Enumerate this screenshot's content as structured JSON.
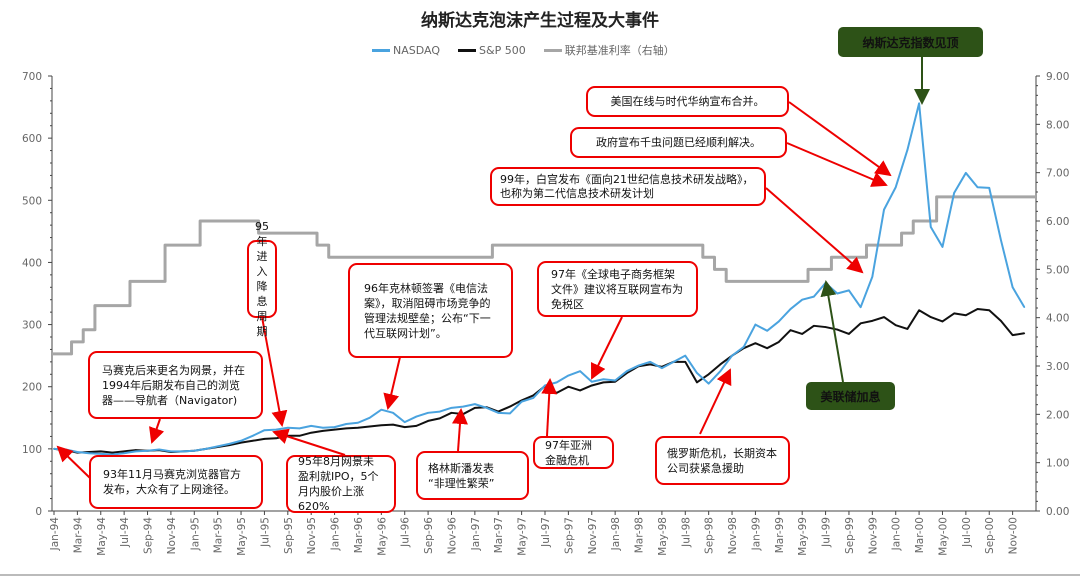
{
  "chart_data": {
    "type": "line",
    "title": "纳斯达克泡沫产生过程及大事件",
    "legend": {
      "placement": "top",
      "entries": [
        "NASDAQ",
        "S&P 500",
        "联邦基准利率（右轴）"
      ]
    },
    "x_ticks": [
      "Jan-94",
      "Mar-94",
      "May-94",
      "Jul-94",
      "Sep-94",
      "Nov-94",
      "Jan-95",
      "Mar-95",
      "May-95",
      "Jul-95",
      "Sep-95",
      "Nov-95",
      "Jan-96",
      "Mar-96",
      "May-96",
      "Jul-96",
      "Sep-96",
      "Nov-96",
      "Jan-97",
      "Mar-97",
      "May-97",
      "Jul-97",
      "Sep-97",
      "Nov-97",
      "Jan-98",
      "Mar-98",
      "May-98",
      "Jul-98",
      "Sep-98",
      "Nov-98",
      "Jan-99",
      "Mar-99",
      "May-99",
      "Jul-99",
      "Sep-99",
      "Nov-99",
      "Jan-00",
      "Mar-00",
      "May-00",
      "Jul-00",
      "Sep-00",
      "Nov-00"
    ],
    "x_range": [
      "Jan-94",
      "Dec-00"
    ],
    "x_frequency": "monthly",
    "y_left": {
      "range": [
        0,
        700
      ],
      "ticks": [
        "0",
        "100",
        "200",
        "300",
        "400",
        "500",
        "600",
        "700"
      ]
    },
    "y_right": {
      "range": [
        0,
        9
      ],
      "ticks": [
        "0.00",
        "1.00",
        "2.00",
        "3.00",
        "4.00",
        "5.00",
        "6.00",
        "7.00",
        "8.00",
        "9.00"
      ]
    },
    "grid": false,
    "series": [
      {
        "name": "NASDAQ",
        "axis": "left",
        "color": "#4aa3df",
        "values": [
          100,
          99,
          95,
          93,
          92,
          91,
          93,
          96,
          97,
          99,
          96,
          96,
          97,
          100,
          104,
          108,
          113,
          121,
          130,
          131,
          134,
          133,
          137,
          134,
          135,
          140,
          142,
          150,
          163,
          158,
          143,
          152,
          158,
          160,
          166,
          168,
          172,
          166,
          158,
          157,
          176,
          182,
          202,
          207,
          218,
          225,
          208,
          212,
          210,
          225,
          234,
          240,
          230,
          240,
          250,
          222,
          205,
          225,
          250,
          264,
          300,
          290,
          305,
          325,
          340,
          345,
          367,
          350,
          355,
          328,
          377,
          485,
          521,
          581,
          656,
          457,
          425,
          512,
          544,
          521,
          520,
          436,
          360,
          328
        ]
      },
      {
        "name": "S&P 500",
        "axis": "left",
        "color": "#111111",
        "values": [
          100,
          98,
          94,
          95,
          96,
          94,
          96,
          98,
          97,
          98,
          95,
          96,
          97,
          100,
          103,
          106,
          110,
          113,
          116,
          117,
          121,
          121,
          126,
          129,
          131,
          133,
          134,
          136,
          138,
          139,
          135,
          137,
          145,
          149,
          158,
          156,
          166,
          167,
          160,
          168,
          178,
          186,
          201,
          190,
          200,
          194,
          202,
          207,
          208,
          222,
          233,
          236,
          232,
          240,
          240,
          207,
          220,
          236,
          250,
          262,
          270,
          262,
          272,
          291,
          285,
          298,
          296,
          292,
          285,
          302,
          306,
          312,
          299,
          293,
          323,
          312,
          305,
          318,
          315,
          325,
          323,
          306,
          283,
          286
        ]
      },
      {
        "name": "联邦基准利率（右轴）",
        "axis": "right",
        "color": "#a6a6a6",
        "values": [
          3.25,
          3.25,
          3.5,
          3.75,
          4.25,
          4.25,
          4.25,
          4.75,
          4.75,
          4.75,
          5.5,
          5.5,
          5.5,
          6.0,
          6.0,
          6.0,
          6.0,
          6.0,
          5.75,
          5.75,
          5.75,
          5.75,
          5.75,
          5.5,
          5.25,
          5.25,
          5.25,
          5.25,
          5.25,
          5.25,
          5.25,
          5.25,
          5.25,
          5.25,
          5.25,
          5.25,
          5.25,
          5.25,
          5.5,
          5.5,
          5.5,
          5.5,
          5.5,
          5.5,
          5.5,
          5.5,
          5.5,
          5.5,
          5.5,
          5.5,
          5.5,
          5.5,
          5.5,
          5.5,
          5.5,
          5.5,
          5.25,
          5.0,
          4.75,
          4.75,
          4.75,
          4.75,
          4.75,
          4.75,
          4.75,
          5.0,
          5.0,
          5.25,
          5.25,
          5.25,
          5.5,
          5.5,
          5.5,
          5.75,
          6.0,
          6.0,
          6.5,
          6.5,
          6.5,
          6.5,
          6.5,
          6.5,
          6.5,
          6.5
        ]
      }
    ]
  },
  "annotations": {
    "rate_cut_95": "95年\n进入\n降息\n周期",
    "telecom_96": "96年克林顿签署《电信法案》，取消阻碍市场竞争的管理法规壁垒；公布“下一代互联网计划”。",
    "ecommerce_97": "97年《全球电子商务框架文件》建议将互联网宣布为免税区",
    "navigator": "马赛克后来更名为网景，并在1994年后期发布自己的浏览器——导航者（Navigator)",
    "mosaic_93": "93年11月马赛克浏览器官方发布，大众有了上网途径。",
    "netscape_ipo": "95年8月网景未盈利就IPO，5个月内股价上涨620%",
    "greenspan": "格林斯潘发表\n“非理性繁荣”",
    "asia_crisis": "97年亚洲\n金融危机",
    "russia_crisis": "俄罗斯危机，长期资本公司获紧急援助",
    "aol_merger": "美国在线与时代华纳宣布合并。",
    "y2k": "政府宣布千虫问题已经顺利解决。",
    "whitehouse_99": "99年，白宫发布《面向21世纪信息技术研发战略》，也称为第二代信息技术研发计划",
    "nasdaq_peak": "纳斯达克指数见顶",
    "fed_hike": "美联储加息"
  },
  "colors": {
    "annotation_border": "#ee0000",
    "green_label": "#2d5217"
  }
}
